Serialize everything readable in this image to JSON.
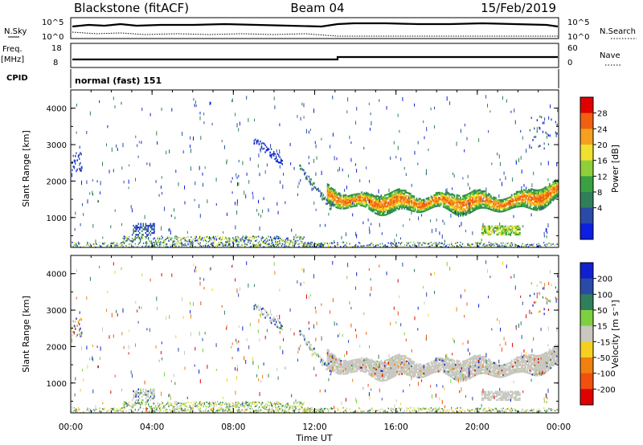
{
  "header": {
    "station": "Blackstone (fitACF)",
    "beam": "Beam 04",
    "date": "15/Feb/2019"
  },
  "summary_panel": {
    "nsky_label": "N.Sky",
    "nsearch_label": "N.Search",
    "noise_ticks": [
      "10^5",
      "10^0"
    ],
    "freq_label": "Freq.",
    "freq_unit": "[MHz]",
    "freq_ticks": [
      "18",
      "8"
    ],
    "nave_label": "Nave",
    "nave_ticks": [
      "60",
      "0"
    ],
    "cpid_label": "CPID",
    "cpid_text": "normal (fast) 151"
  },
  "colors": {
    "power": [
      "#0a1fe0",
      "#2a4aa8",
      "#2f7f5a",
      "#3aa040",
      "#8fd03a",
      "#f0e030",
      "#f5a020",
      "#f06010",
      "#e00000"
    ],
    "velocity": [
      "#1020d0",
      "#2a4aa8",
      "#2f7f5a",
      "#7dd040",
      "#c8c8c0",
      "#f5d020",
      "#f08010",
      "#f05010",
      "#e00000"
    ]
  },
  "chart_data": [
    {
      "type": "heatmap",
      "panel": "power",
      "xlabel": "Time UT",
      "ylabel": "Slant Range [km]",
      "colorbar_label": "Power [dB]",
      "colorbar_ticks": [
        "28",
        "24",
        "20",
        "16",
        "12",
        "8",
        "4"
      ],
      "xticks": [
        "00:00",
        "04:00",
        "08:00",
        "12:00",
        "16:00",
        "20:00",
        "00:00"
      ],
      "yticks": [
        "1000",
        "2000",
        "3000",
        "4000"
      ],
      "xlim": [
        0,
        24
      ],
      "ylim": [
        180,
        4500
      ],
      "grid": false
    },
    {
      "type": "heatmap",
      "panel": "velocity",
      "xlabel": "Time UT",
      "ylabel": "Slant Range [km]",
      "colorbar_label": "Velocity [m s⁻¹]",
      "colorbar_ticks": [
        "200",
        "100",
        "50",
        "15",
        "-15",
        "-50",
        "-100",
        "-200"
      ],
      "xticks": [
        "00:00",
        "04:00",
        "08:00",
        "12:00",
        "16:00",
        "20:00",
        "00:00"
      ],
      "yticks": [
        "1000",
        "2000",
        "3000",
        "4000"
      ],
      "xlim": [
        0,
        24
      ],
      "ylim": [
        180,
        4500
      ],
      "grid": false
    }
  ]
}
